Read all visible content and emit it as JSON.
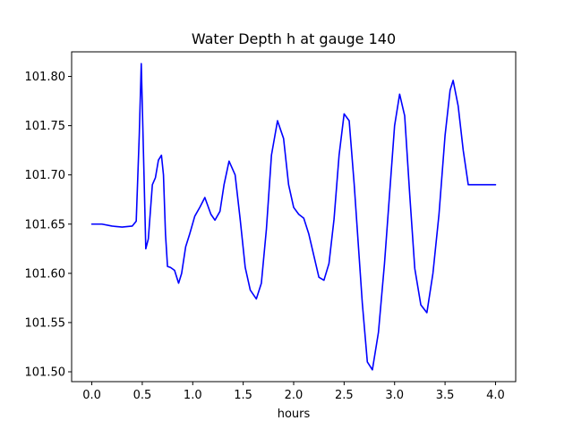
{
  "chart_data": {
    "type": "line",
    "title": "Water Depth h at gauge 140",
    "xlabel": "hours",
    "ylabel": "",
    "xlim": [
      -0.2,
      4.2
    ],
    "ylim": [
      101.49,
      101.825
    ],
    "xticks": [
      0.0,
      0.5,
      1.0,
      1.5,
      2.0,
      2.5,
      3.0,
      3.5,
      4.0
    ],
    "xtick_labels": [
      "0.0",
      "0.5",
      "1.0",
      "1.5",
      "2.0",
      "2.5",
      "3.0",
      "3.5",
      "4.0"
    ],
    "yticks": [
      101.5,
      101.55,
      101.6,
      101.65,
      101.7,
      101.75,
      101.8
    ],
    "ytick_labels": [
      "101.50",
      "101.55",
      "101.60",
      "101.65",
      "101.70",
      "101.75",
      "101.80"
    ],
    "grid": false,
    "colors": {
      "line": "#0000ff",
      "axes": "#000000",
      "background": "#ffffff"
    },
    "series": [
      {
        "x": [
          0.0,
          0.1,
          0.2,
          0.3,
          0.4,
          0.44,
          0.47,
          0.49,
          0.51,
          0.535,
          0.56,
          0.6,
          0.63,
          0.66,
          0.69,
          0.71,
          0.73,
          0.75,
          0.78,
          0.82,
          0.86,
          0.89,
          0.93,
          0.97,
          1.02,
          1.07,
          1.12,
          1.18,
          1.22,
          1.27,
          1.31,
          1.36,
          1.42,
          1.47,
          1.52,
          1.57,
          1.63,
          1.68,
          1.73,
          1.78,
          1.84,
          1.9,
          1.95,
          2.0,
          2.05,
          2.1,
          2.15,
          2.2,
          2.25,
          2.3,
          2.35,
          2.4,
          2.45,
          2.5,
          2.55,
          2.6,
          2.64,
          2.68,
          2.73,
          2.78,
          2.84,
          2.9,
          2.95,
          3.0,
          3.05,
          3.1,
          3.15,
          3.2,
          3.26,
          3.32,
          3.38,
          3.44,
          3.5,
          3.55,
          3.58,
          3.63,
          3.68,
          3.73,
          3.78,
          3.84,
          3.89,
          3.94,
          4.0
        ],
        "y": [
          101.65,
          101.65,
          101.648,
          101.647,
          101.648,
          101.653,
          101.74,
          101.813,
          101.73,
          101.625,
          101.635,
          101.69,
          101.697,
          101.715,
          101.72,
          101.7,
          101.64,
          101.607,
          101.606,
          101.603,
          101.59,
          101.6,
          101.627,
          101.64,
          101.658,
          101.667,
          101.677,
          101.66,
          101.654,
          101.663,
          101.69,
          101.714,
          101.7,
          101.655,
          101.606,
          101.583,
          101.574,
          101.59,
          101.645,
          101.72,
          101.755,
          101.737,
          101.69,
          101.667,
          101.66,
          101.656,
          101.64,
          101.618,
          101.596,
          101.593,
          101.61,
          101.655,
          101.72,
          101.762,
          101.755,
          101.69,
          101.63,
          101.57,
          101.51,
          101.502,
          101.54,
          101.61,
          101.68,
          101.75,
          101.782,
          101.76,
          101.68,
          101.605,
          101.568,
          101.56,
          101.6,
          101.66,
          101.74,
          101.786,
          101.796,
          101.77,
          101.725,
          101.69,
          101.69,
          101.69,
          101.69,
          101.69,
          101.69
        ]
      }
    ]
  }
}
